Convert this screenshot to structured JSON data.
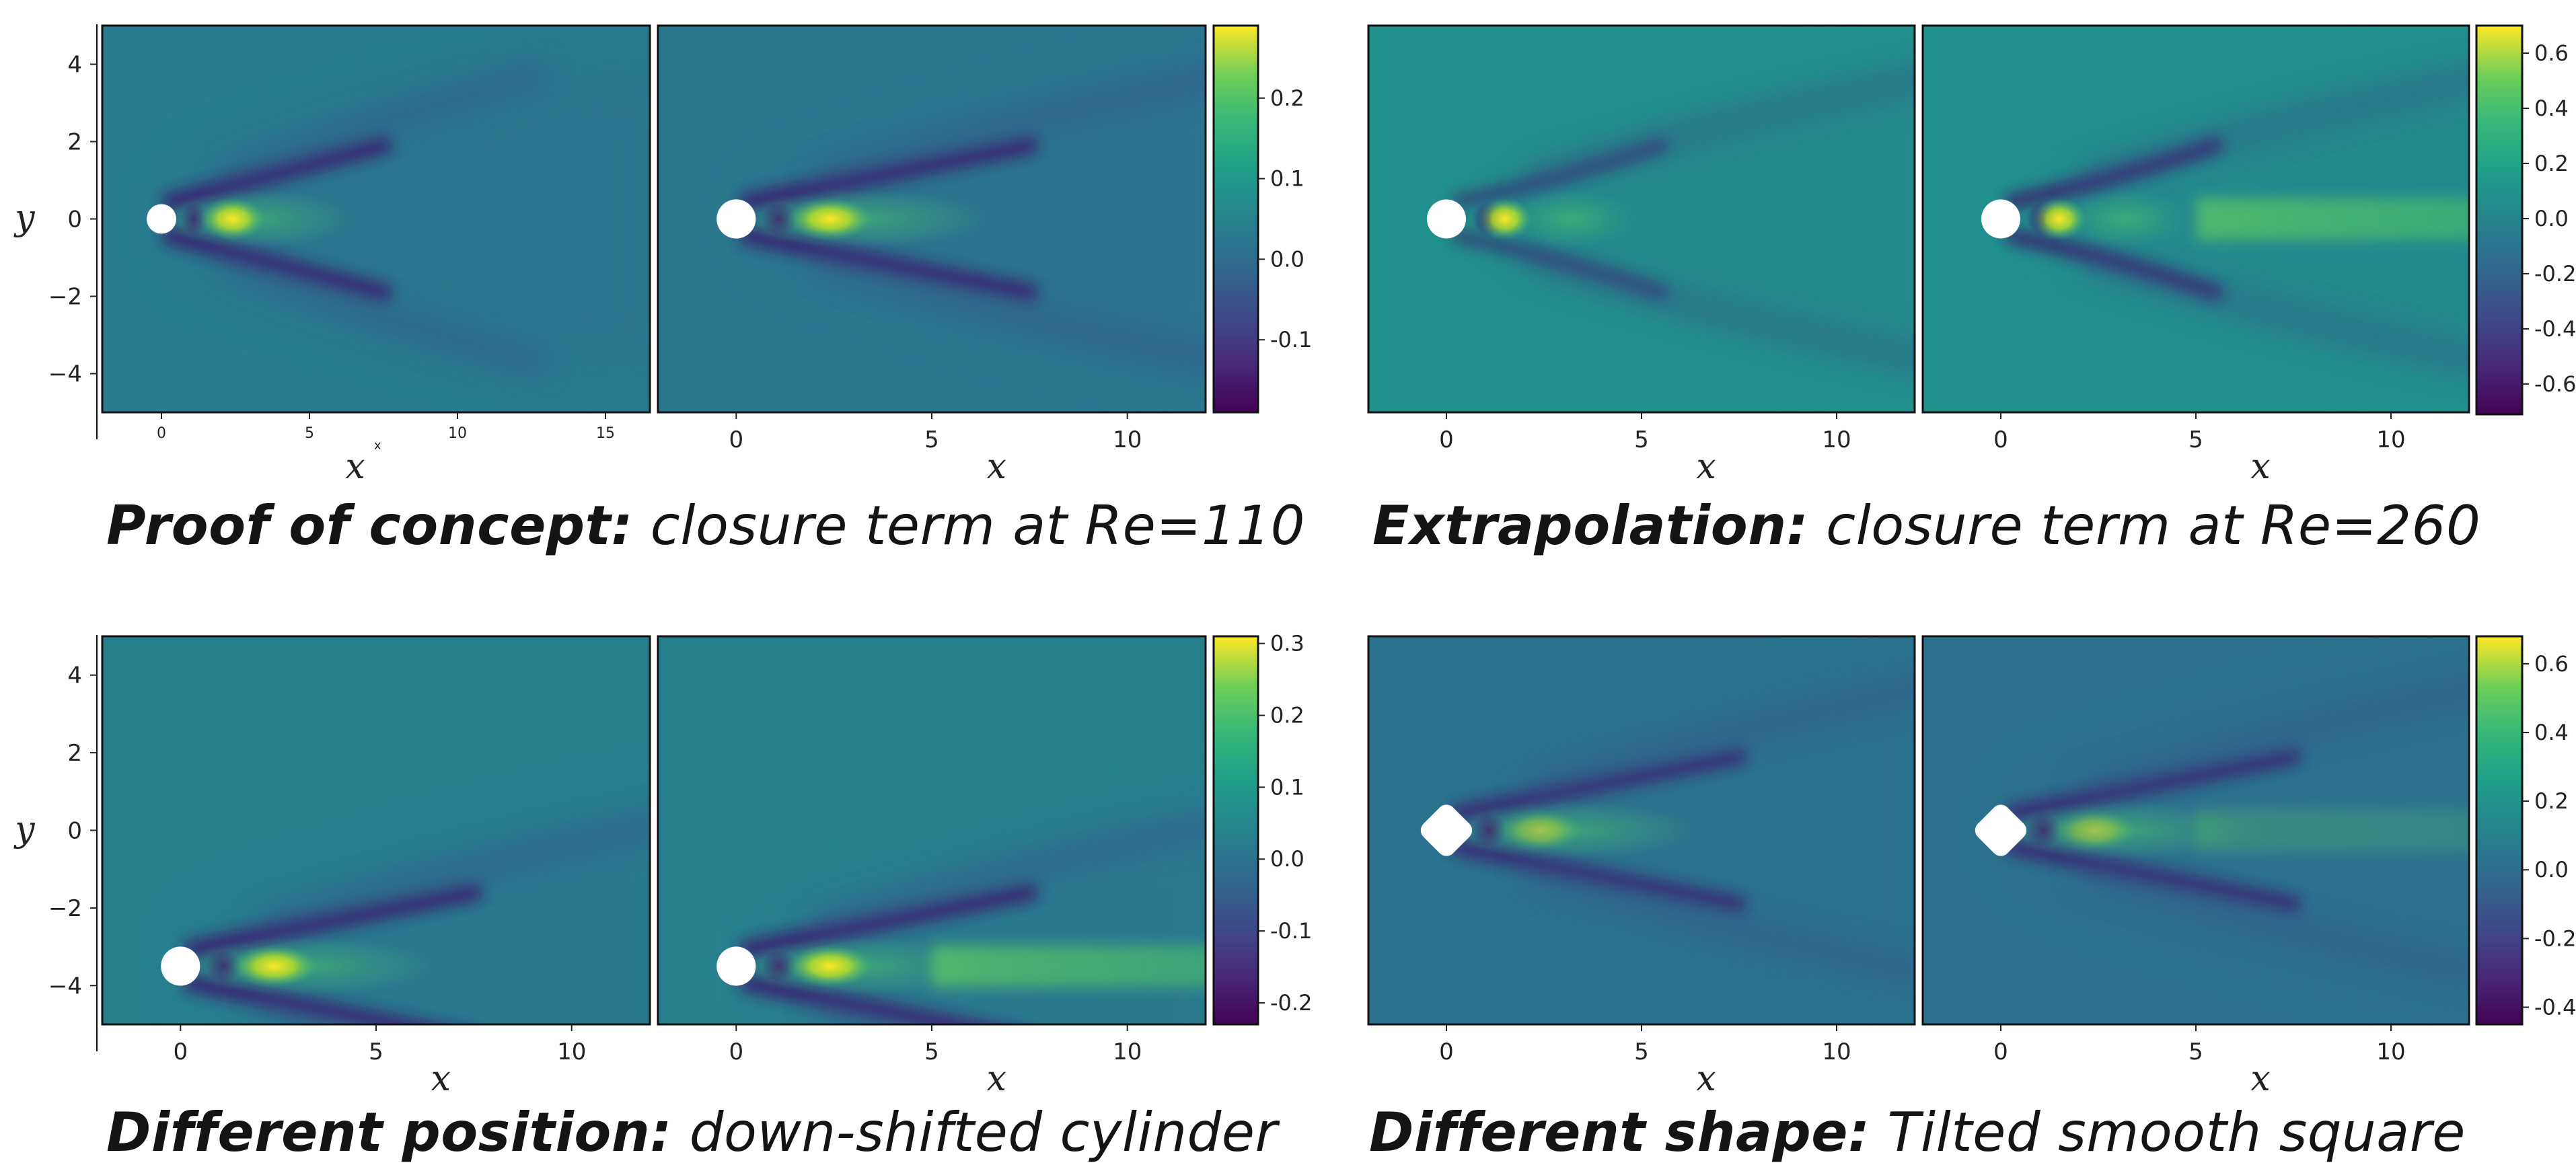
{
  "captions": [
    {
      "bold": "Proof of concept:",
      "italic": "closure term at Re=110"
    },
    {
      "bold": "Extrapolation:",
      "italic": "closure term at Re=260"
    },
    {
      "bold": "Different position:",
      "italic": "down-shifted cylinder"
    },
    {
      "bold": "Different shape:",
      "italic": "Tilted smooth square"
    }
  ],
  "colormap": "viridis",
  "chart_data": [
    {
      "type": "heatmap",
      "title": "",
      "xlabel": "x",
      "ylabel": "y",
      "obstacle": "circle",
      "obstacle_center": [
        0,
        0
      ],
      "panels": [
        {
          "xlim": [
            -2,
            16.5
          ],
          "ylim": [
            -5,
            5
          ],
          "xticks": [
            "0",
            "5",
            "10",
            "15"
          ],
          "extra_x_marker": "x"
        },
        {
          "xlim": [
            -2,
            12
          ],
          "ylim": [
            -5,
            5
          ],
          "xticks": [
            "0",
            "5",
            "10"
          ]
        }
      ],
      "yticks": [
        "4",
        "2",
        "0",
        "−2",
        "−4"
      ],
      "colorbar": {
        "range": [
          -0.19,
          0.29
        ],
        "ticks": [
          "0.2",
          "0.1",
          "0.0",
          "-0.1"
        ],
        "tick_values": [
          0.2,
          0.1,
          0.0,
          -0.1
        ]
      }
    },
    {
      "type": "heatmap",
      "title": "",
      "xlabel": "x",
      "ylabel": "",
      "obstacle": "circle",
      "obstacle_center": [
        0,
        0
      ],
      "panels": [
        {
          "xlim": [
            -2,
            12
          ],
          "ylim": [
            -5,
            5
          ],
          "xticks": [
            "0",
            "5",
            "10"
          ]
        },
        {
          "xlim": [
            -2,
            12
          ],
          "ylim": [
            -5,
            5
          ],
          "xticks": [
            "0",
            "5",
            "10"
          ]
        }
      ],
      "yticks": [],
      "colorbar": {
        "range": [
          -0.71,
          0.7
        ],
        "ticks": [
          "0.6",
          "0.4",
          "0.2",
          "0.0",
          "-0.2",
          "-0.4",
          "-0.6"
        ],
        "tick_values": [
          0.6,
          0.4,
          0.2,
          0.0,
          -0.2,
          -0.4,
          -0.6
        ]
      }
    },
    {
      "type": "heatmap",
      "title": "",
      "xlabel": "x",
      "ylabel": "y",
      "obstacle": "circle",
      "obstacle_center": [
        0,
        -3.5
      ],
      "panels": [
        {
          "xlim": [
            -2,
            12
          ],
          "ylim": [
            -5,
            5
          ],
          "xticks": [
            "0",
            "5",
            "10"
          ]
        },
        {
          "xlim": [
            -2,
            12
          ],
          "ylim": [
            -5,
            5
          ],
          "xticks": [
            "0",
            "5",
            "10"
          ]
        }
      ],
      "yticks": [
        "4",
        "2",
        "0",
        "−2",
        "−4"
      ],
      "colorbar": {
        "range": [
          -0.23,
          0.31
        ],
        "ticks": [
          "0.3",
          "0.2",
          "0.1",
          "0.0",
          "-0.1",
          "-0.2"
        ],
        "tick_values": [
          0.3,
          0.2,
          0.1,
          0.0,
          -0.1,
          -0.2
        ]
      }
    },
    {
      "type": "heatmap",
      "title": "",
      "xlabel": "x",
      "ylabel": "",
      "obstacle": "tilted smooth square",
      "obstacle_center": [
        0,
        0
      ],
      "panels": [
        {
          "xlim": [
            -2,
            12
          ],
          "ylim": [
            -5,
            5
          ],
          "xticks": [
            "0",
            "5",
            "10"
          ]
        },
        {
          "xlim": [
            -2,
            12
          ],
          "ylim": [
            -5,
            5
          ],
          "xticks": [
            "0",
            "5",
            "10"
          ]
        }
      ],
      "yticks": [],
      "colorbar": {
        "range": [
          -0.45,
          0.68
        ],
        "ticks": [
          "0.6",
          "0.4",
          "0.2",
          "0.0",
          "-0.2",
          "-0.4"
        ],
        "tick_values": [
          0.6,
          0.4,
          0.2,
          0.0,
          -0.2,
          -0.4
        ]
      }
    }
  ]
}
